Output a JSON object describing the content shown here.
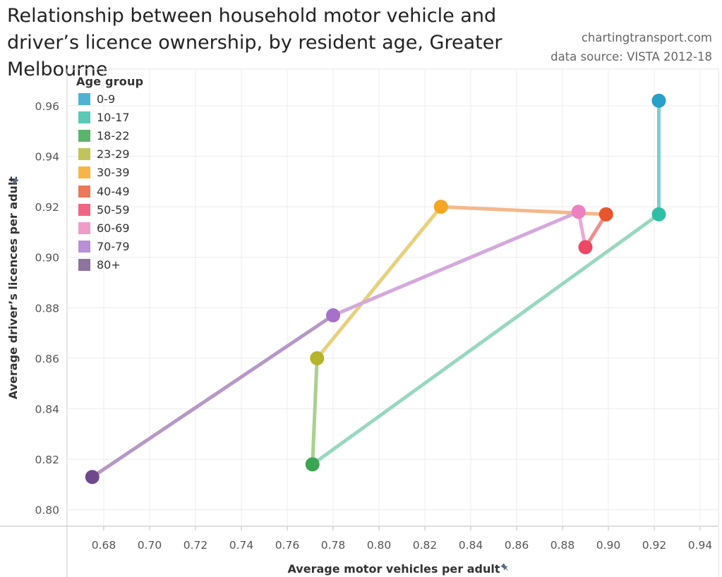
{
  "title": "Relationship between household motor vehicle and driver’s licence ownership, by resident age, Greater Melbourne",
  "site": "chartingtransport.com",
  "data_source": "data source: VISTA 2012-18",
  "chart_data": {
    "type": "scatter",
    "title": "Relationship between household motor vehicle and driver’s licence ownership, by resident age, Greater Melbourne",
    "xlabel": "Average motor vehicles per adult",
    "ylabel": "Average driver’s licences per adult",
    "xlim": [
      0.664,
      0.948
    ],
    "ylim": [
      0.7935,
      0.9745
    ],
    "x_ticks": [
      "0.68",
      "0.70",
      "0.72",
      "0.74",
      "0.76",
      "0.78",
      "0.80",
      "0.82",
      "0.84",
      "0.86",
      "0.88",
      "0.90",
      "0.92",
      "0.94"
    ],
    "y_ticks": [
      "0.80",
      "0.82",
      "0.84",
      "0.86",
      "0.88",
      "0.90",
      "0.92",
      "0.94",
      "0.96"
    ],
    "grid": true,
    "legend_title": "Age group",
    "legend_position": "top-left",
    "connected": true,
    "series": [
      {
        "name": "0-9",
        "x": 0.922,
        "y": 0.962,
        "color": "#2aa0c8"
      },
      {
        "name": "10-17",
        "x": 0.922,
        "y": 0.917,
        "color": "#2fbfa7"
      },
      {
        "name": "18-22",
        "x": 0.771,
        "y": 0.818,
        "color": "#3aa651"
      },
      {
        "name": "23-29",
        "x": 0.773,
        "y": 0.86,
        "color": "#b5b42a"
      },
      {
        "name": "30-39",
        "x": 0.827,
        "y": 0.92,
        "color": "#f5a623"
      },
      {
        "name": "40-49",
        "x": 0.899,
        "y": 0.917,
        "color": "#e8542b"
      },
      {
        "name": "50-59",
        "x": 0.89,
        "y": 0.904,
        "color": "#ee4764"
      },
      {
        "name": "60-69",
        "x": 0.887,
        "y": 0.918,
        "color": "#ee7fc0"
      },
      {
        "name": "70-79",
        "x": 0.78,
        "y": 0.877,
        "color": "#a672c9"
      },
      {
        "name": "80+",
        "x": 0.675,
        "y": 0.813,
        "color": "#6e4a8c"
      }
    ],
    "legend_colors": [
      "#4eb3d3",
      "#5cc9b5",
      "#5bb46c",
      "#c1c45a",
      "#f7b547",
      "#eb7859",
      "#ef6685",
      "#f09cc9",
      "#b98fd6",
      "#8e739f"
    ],
    "line_colors": [
      "#79cfd2",
      "#98d8bf",
      "#a8d18f",
      "#e8d07a",
      "#f4b88c",
      "#f08c8c",
      "#eca9d6",
      "#d4a9dc",
      "#b797c8"
    ]
  }
}
